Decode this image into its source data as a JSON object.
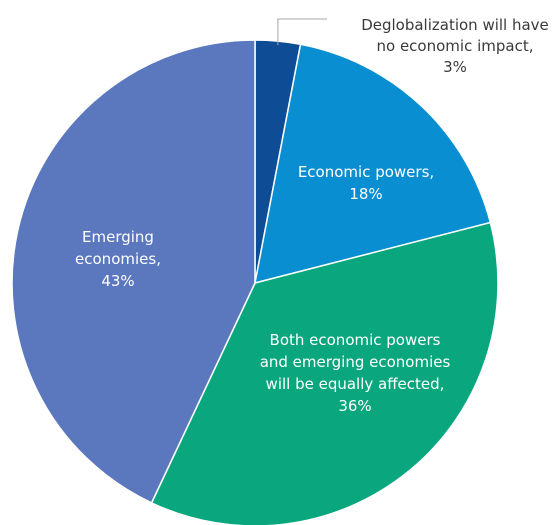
{
  "chart_data": {
    "type": "pie",
    "title": "",
    "slices": [
      {
        "label_lines": [
          "Deglobalization will have",
          "no economic impact,",
          "3%"
        ],
        "value": 3,
        "color": "#0e4d96"
      },
      {
        "label_lines": [
          "Economic powers,",
          "18%"
        ],
        "value": 18,
        "color": "#0a8ed2"
      },
      {
        "label_lines": [
          "Both economic powers",
          "and emerging economies",
          "will be equally affected,",
          "36%"
        ],
        "value": 36,
        "color": "#0aa77f"
      },
      {
        "label_lines": [
          "Emerging",
          "economies,",
          "43%"
        ],
        "value": 43,
        "color": "#5b77bd"
      }
    ]
  }
}
